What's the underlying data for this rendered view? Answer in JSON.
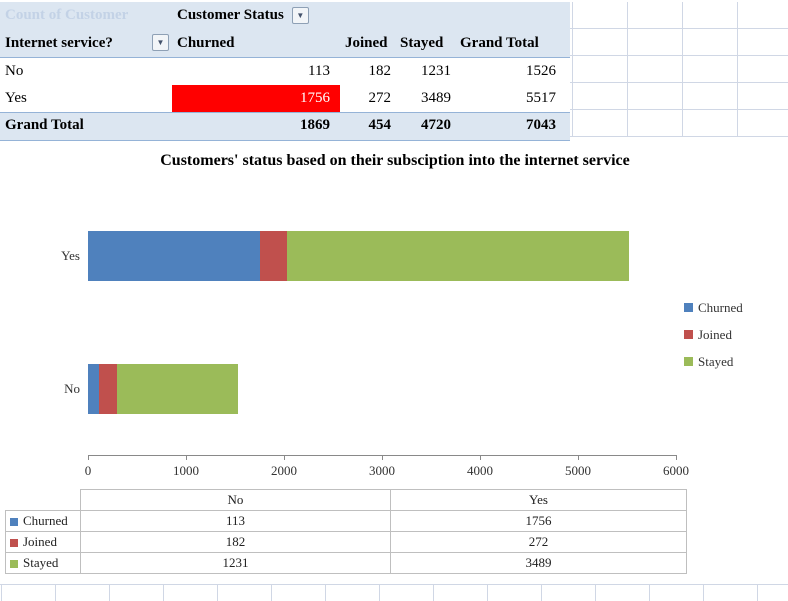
{
  "icons": {
    "dropdown": "▼"
  },
  "pivot": {
    "count_label": "Count of Customer",
    "column_field": {
      "label": "Customer Status"
    },
    "row_field": {
      "label": "Internet service?"
    },
    "column_headers": [
      "Churned",
      "Joined",
      "Stayed",
      "Grand Total"
    ],
    "rows": [
      {
        "label": "No",
        "churned": "113",
        "joined": "182",
        "stayed": "1231",
        "total": "1526"
      },
      {
        "label": "Yes",
        "churned": "1756",
        "joined": "272",
        "stayed": "3489",
        "total": "5517"
      }
    ],
    "grand_total": {
      "label": "Grand Total",
      "churned": "1869",
      "joined": "454",
      "stayed": "4720",
      "total": "7043"
    }
  },
  "chart_data": {
    "type": "bar",
    "orientation": "horizontal",
    "stacked": true,
    "title": "Customers' status based on their subsciption into the internet service",
    "categories": [
      "Yes",
      "No"
    ],
    "series": [
      {
        "name": "Churned",
        "color": "#4f81bd",
        "values": [
          1756,
          113
        ]
      },
      {
        "name": "Joined",
        "color": "#c0504d",
        "values": [
          272,
          182
        ]
      },
      {
        "name": "Stayed",
        "color": "#9bbb59",
        "values": [
          3489,
          1231
        ]
      }
    ],
    "xlim": [
      0,
      6000
    ],
    "x_ticks": [
      0,
      1000,
      2000,
      3000,
      4000,
      5000,
      6000
    ],
    "legend_position": "right",
    "grid": false
  },
  "data_table": {
    "col_headers": [
      "No",
      "Yes"
    ],
    "rows": [
      {
        "name": "Churned",
        "color": "#4f81bd",
        "values": [
          "113",
          "1756"
        ]
      },
      {
        "name": "Joined",
        "color": "#c0504d",
        "values": [
          "182",
          "272"
        ]
      },
      {
        "name": "Stayed",
        "color": "#9bbb59",
        "values": [
          "1231",
          "3489"
        ]
      }
    ]
  },
  "colors": {
    "pivot_header_bg": "#dce6f1",
    "pivot_border": "#95b3d7",
    "highlight_bg": "#ff0000",
    "highlight_text": "#ffffff",
    "gridline": "#d0d7e5",
    "axis": "#898989",
    "table_border": "#bfbfbf"
  }
}
